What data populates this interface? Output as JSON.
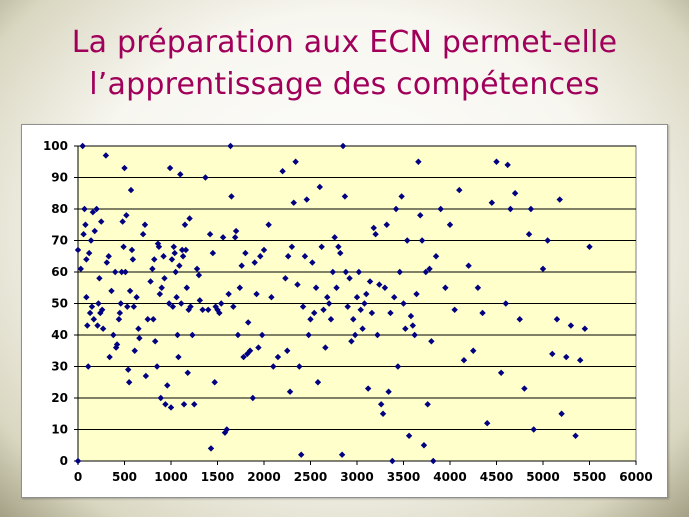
{
  "slide": {
    "title_line1": "La préparation aux ECN permet-elle",
    "title_line2": "l’apprentissage des compétences"
  },
  "colors": {
    "title": "#a1005a",
    "plot_background": "#ffffcc",
    "marker": "#000080",
    "gridline": "#000000"
  },
  "chart_data": {
    "type": "scatter",
    "title": "",
    "xlabel": "",
    "ylabel": "",
    "xlim": [
      0,
      6000
    ],
    "ylim": [
      0,
      100
    ],
    "xticks": [
      0,
      500,
      1000,
      1500,
      2000,
      2500,
      3000,
      3500,
      4000,
      4500,
      5000,
      5500,
      6000
    ],
    "yticks": [
      0,
      10,
      20,
      30,
      40,
      50,
      60,
      70,
      80,
      90,
      100
    ],
    "grid": "horizontal",
    "legend": "none",
    "marker": "diamond",
    "series": [
      {
        "points": [
          [
            0,
            67
          ],
          [
            0,
            0
          ],
          [
            30,
            61
          ],
          [
            50,
            100
          ],
          [
            60,
            72
          ],
          [
            70,
            80
          ],
          [
            80,
            75
          ],
          [
            90,
            64
          ],
          [
            90,
            52
          ],
          [
            100,
            43
          ],
          [
            110,
            30
          ],
          [
            120,
            66
          ],
          [
            130,
            47
          ],
          [
            140,
            70
          ],
          [
            150,
            49
          ],
          [
            160,
            79
          ],
          [
            170,
            45
          ],
          [
            180,
            73
          ],
          [
            200,
            80
          ],
          [
            210,
            43
          ],
          [
            220,
            50
          ],
          [
            230,
            58
          ],
          [
            240,
            47
          ],
          [
            250,
            76
          ],
          [
            260,
            48
          ],
          [
            270,
            42
          ],
          [
            300,
            97
          ],
          [
            310,
            63
          ],
          [
            330,
            65
          ],
          [
            340,
            33
          ],
          [
            360,
            54
          ],
          [
            380,
            40
          ],
          [
            400,
            60
          ],
          [
            410,
            36
          ],
          [
            420,
            37
          ],
          [
            440,
            45
          ],
          [
            450,
            47
          ],
          [
            460,
            50
          ],
          [
            470,
            60
          ],
          [
            480,
            76
          ],
          [
            490,
            68
          ],
          [
            500,
            93
          ],
          [
            510,
            60
          ],
          [
            520,
            78
          ],
          [
            530,
            49
          ],
          [
            540,
            29
          ],
          [
            550,
            25
          ],
          [
            560,
            54
          ],
          [
            570,
            86
          ],
          [
            580,
            67
          ],
          [
            590,
            64
          ],
          [
            600,
            49
          ],
          [
            610,
            35
          ],
          [
            630,
            52
          ],
          [
            650,
            42
          ],
          [
            660,
            39
          ],
          [
            700,
            72
          ],
          [
            720,
            75
          ],
          [
            730,
            27
          ],
          [
            750,
            45
          ],
          [
            780,
            57
          ],
          [
            800,
            61
          ],
          [
            810,
            45
          ],
          [
            820,
            64
          ],
          [
            830,
            38
          ],
          [
            850,
            30
          ],
          [
            860,
            69
          ],
          [
            870,
            68
          ],
          [
            880,
            53
          ],
          [
            890,
            20
          ],
          [
            900,
            55
          ],
          [
            920,
            65
          ],
          [
            930,
            58
          ],
          [
            940,
            18
          ],
          [
            960,
            24
          ],
          [
            980,
            50
          ],
          [
            990,
            93
          ],
          [
            1000,
            17
          ],
          [
            1010,
            64
          ],
          [
            1020,
            49
          ],
          [
            1030,
            68
          ],
          [
            1040,
            66
          ],
          [
            1050,
            60
          ],
          [
            1060,
            52
          ],
          [
            1070,
            40
          ],
          [
            1080,
            33
          ],
          [
            1090,
            62
          ],
          [
            1100,
            91
          ],
          [
            1110,
            50
          ],
          [
            1120,
            67
          ],
          [
            1130,
            65
          ],
          [
            1140,
            18
          ],
          [
            1150,
            75
          ],
          [
            1160,
            67
          ],
          [
            1170,
            55
          ],
          [
            1180,
            28
          ],
          [
            1190,
            48
          ],
          [
            1200,
            77
          ],
          [
            1210,
            49
          ],
          [
            1230,
            40
          ],
          [
            1250,
            18
          ],
          [
            1280,
            61
          ],
          [
            1300,
            59
          ],
          [
            1310,
            51
          ],
          [
            1340,
            48
          ],
          [
            1370,
            90
          ],
          [
            1400,
            48
          ],
          [
            1420,
            72
          ],
          [
            1430,
            4
          ],
          [
            1450,
            66
          ],
          [
            1470,
            25
          ],
          [
            1480,
            49
          ],
          [
            1500,
            48
          ],
          [
            1520,
            47
          ],
          [
            1540,
            50
          ],
          [
            1560,
            71
          ],
          [
            1580,
            9
          ],
          [
            1600,
            10
          ],
          [
            1620,
            53
          ],
          [
            1640,
            100
          ],
          [
            1650,
            84
          ],
          [
            1670,
            49
          ],
          [
            1690,
            71
          ],
          [
            1700,
            73
          ],
          [
            1720,
            40
          ],
          [
            1740,
            55
          ],
          [
            1760,
            62
          ],
          [
            1780,
            33
          ],
          [
            1800,
            66
          ],
          [
            1820,
            34
          ],
          [
            1830,
            44
          ],
          [
            1850,
            35
          ],
          [
            1880,
            20
          ],
          [
            1900,
            63
          ],
          [
            1920,
            53
          ],
          [
            1940,
            36
          ],
          [
            1960,
            65
          ],
          [
            1980,
            40
          ],
          [
            2000,
            67
          ],
          [
            2050,
            75
          ],
          [
            2080,
            52
          ],
          [
            2100,
            30
          ],
          [
            2150,
            33
          ],
          [
            2200,
            92
          ],
          [
            2230,
            58
          ],
          [
            2250,
            35
          ],
          [
            2260,
            65
          ],
          [
            2280,
            22
          ],
          [
            2300,
            68
          ],
          [
            2320,
            82
          ],
          [
            2340,
            95
          ],
          [
            2360,
            56
          ],
          [
            2380,
            30
          ],
          [
            2400,
            2
          ],
          [
            2420,
            49
          ],
          [
            2440,
            65
          ],
          [
            2460,
            83
          ],
          [
            2480,
            40
          ],
          [
            2500,
            45
          ],
          [
            2520,
            63
          ],
          [
            2540,
            47
          ],
          [
            2560,
            55
          ],
          [
            2580,
            25
          ],
          [
            2600,
            87
          ],
          [
            2620,
            68
          ],
          [
            2640,
            48
          ],
          [
            2660,
            36
          ],
          [
            2680,
            52
          ],
          [
            2700,
            50
          ],
          [
            2720,
            45
          ],
          [
            2740,
            60
          ],
          [
            2760,
            71
          ],
          [
            2780,
            55
          ],
          [
            2800,
            68
          ],
          [
            2820,
            66
          ],
          [
            2840,
            2
          ],
          [
            2850,
            100
          ],
          [
            2870,
            84
          ],
          [
            2880,
            60
          ],
          [
            2900,
            49
          ],
          [
            2920,
            58
          ],
          [
            2940,
            38
          ],
          [
            2960,
            45
          ],
          [
            2980,
            40
          ],
          [
            3000,
            52
          ],
          [
            3020,
            60
          ],
          [
            3040,
            48
          ],
          [
            3060,
            42
          ],
          [
            3080,
            50
          ],
          [
            3100,
            53
          ],
          [
            3120,
            23
          ],
          [
            3140,
            57
          ],
          [
            3160,
            47
          ],
          [
            3180,
            74
          ],
          [
            3200,
            72
          ],
          [
            3220,
            40
          ],
          [
            3240,
            56
          ],
          [
            3260,
            18
          ],
          [
            3280,
            15
          ],
          [
            3300,
            55
          ],
          [
            3320,
            75
          ],
          [
            3340,
            22
          ],
          [
            3360,
            47
          ],
          [
            3380,
            0
          ],
          [
            3400,
            52
          ],
          [
            3420,
            80
          ],
          [
            3440,
            30
          ],
          [
            3460,
            60
          ],
          [
            3480,
            84
          ],
          [
            3500,
            50
          ],
          [
            3520,
            42
          ],
          [
            3540,
            70
          ],
          [
            3560,
            8
          ],
          [
            3580,
            46
          ],
          [
            3600,
            43
          ],
          [
            3620,
            40
          ],
          [
            3640,
            53
          ],
          [
            3660,
            95
          ],
          [
            3680,
            78
          ],
          [
            3700,
            70
          ],
          [
            3720,
            5
          ],
          [
            3740,
            60
          ],
          [
            3760,
            18
          ],
          [
            3780,
            61
          ],
          [
            3800,
            38
          ],
          [
            3820,
            0
          ],
          [
            3850,
            65
          ],
          [
            3900,
            80
          ],
          [
            3950,
            55
          ],
          [
            4000,
            75
          ],
          [
            4050,
            48
          ],
          [
            4100,
            86
          ],
          [
            4150,
            32
          ],
          [
            4200,
            62
          ],
          [
            4250,
            35
          ],
          [
            4300,
            55
          ],
          [
            4350,
            47
          ],
          [
            4400,
            12
          ],
          [
            4450,
            82
          ],
          [
            4500,
            95
          ],
          [
            4550,
            28
          ],
          [
            4600,
            50
          ],
          [
            4620,
            94
          ],
          [
            4650,
            80
          ],
          [
            4700,
            85
          ],
          [
            4750,
            45
          ],
          [
            4800,
            23
          ],
          [
            4850,
            72
          ],
          [
            4870,
            80
          ],
          [
            4900,
            10
          ],
          [
            5000,
            61
          ],
          [
            5050,
            70
          ],
          [
            5100,
            34
          ],
          [
            5150,
            45
          ],
          [
            5180,
            83
          ],
          [
            5200,
            15
          ],
          [
            5250,
            33
          ],
          [
            5300,
            43
          ],
          [
            5350,
            8
          ],
          [
            5400,
            32
          ],
          [
            5450,
            42
          ],
          [
            5500,
            68
          ]
        ]
      }
    ]
  }
}
